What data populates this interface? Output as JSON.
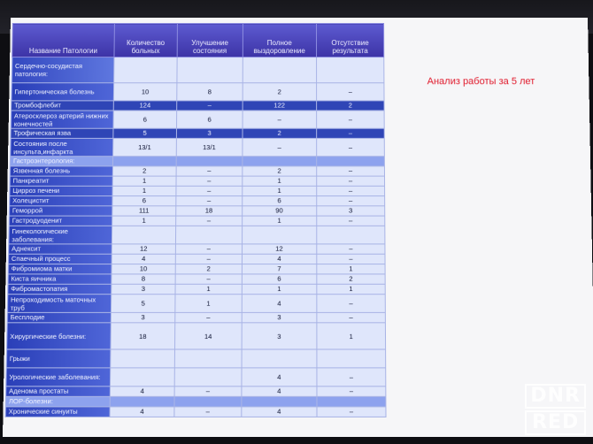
{
  "caption": "Анализ работы за 5 лет",
  "watermark": {
    "line1": "DNR",
    "line2": "RED"
  },
  "table": {
    "headers": [
      "Название Патологии",
      "Количество больных",
      "Улучшение состояния",
      "Полное выздоровление",
      "Отсутствие результата"
    ],
    "rows": [
      {
        "name": "Сердечно-сосудистая патология:",
        "cols": [
          "",
          "",
          "",
          ""
        ]
      },
      {
        "name": "Гипертоническая болезнь",
        "cols": [
          "10",
          "8",
          "2",
          "–"
        ]
      },
      {
        "name": "Тромбофлебит",
        "cols": [
          "124",
          "–",
          "122",
          "2"
        ]
      },
      {
        "name": "Атеросклероз артерий нижних конечностей",
        "cols": [
          "6",
          "6",
          "–",
          "–"
        ]
      },
      {
        "name": "Трофическая язва",
        "cols": [
          "5",
          "3",
          "2",
          "–"
        ]
      },
      {
        "name": "Состояния после инсульта,инфаркта",
        "cols": [
          "13/1",
          "13/1",
          "–",
          "–"
        ]
      },
      {
        "name": "Гастроэнтерология:",
        "cols": [
          "",
          "",
          "",
          ""
        ]
      },
      {
        "name": "Язвенная болезнь",
        "cols": [
          "2",
          "–",
          "2",
          "–"
        ]
      },
      {
        "name": "Панкреатит",
        "cols": [
          "1",
          "–",
          "1",
          "–"
        ]
      },
      {
        "name": "Цирроз печени",
        "cols": [
          "1",
          "–",
          "1",
          "–"
        ]
      },
      {
        "name": "Холецистит",
        "cols": [
          "6",
          "–",
          "6",
          "–"
        ]
      },
      {
        "name": "Геморрой",
        "cols": [
          "111",
          "18",
          "90",
          "3"
        ]
      },
      {
        "name": "Гастродуоденит",
        "cols": [
          "1",
          "–",
          "1",
          "–"
        ]
      },
      {
        "name": "Гинекологические заболевания:",
        "cols": [
          "",
          "",
          "",
          ""
        ]
      },
      {
        "name": "Аднексит",
        "cols": [
          "12",
          "–",
          "12",
          "–"
        ]
      },
      {
        "name": "Спаечный процесс",
        "cols": [
          "4",
          "–",
          "4",
          "–"
        ]
      },
      {
        "name": "Фибромиома матки",
        "cols": [
          "10",
          "2",
          "7",
          "1"
        ]
      },
      {
        "name": "Киста яичника",
        "cols": [
          "8",
          "–",
          "6",
          "2"
        ]
      },
      {
        "name": "Фибромастопатия",
        "cols": [
          "3",
          "1",
          "1",
          "1"
        ]
      },
      {
        "name": "Непроходимость маточных труб",
        "cols": [
          "5",
          "1",
          "4",
          "–"
        ]
      },
      {
        "name": "Бесплодие",
        "cols": [
          "3",
          "–",
          "3",
          "–"
        ]
      },
      {
        "name": "Хирургические болезни:",
        "cols": [
          "18",
          "14",
          "3",
          "1"
        ]
      },
      {
        "name": "Грыжи",
        "cols": [
          "",
          "",
          "",
          ""
        ]
      },
      {
        "name": "Урологические заболевания:",
        "cols": [
          "",
          "",
          "4",
          "–"
        ]
      },
      {
        "name": "Аденома простаты",
        "cols": [
          "4",
          "–",
          "4",
          "–"
        ]
      },
      {
        "name": "ЛОР-болезни:",
        "cols": [
          "",
          "",
          "",
          ""
        ]
      },
      {
        "name": "Хронические синуиты",
        "cols": [
          "4",
          "–",
          "4",
          "–"
        ]
      }
    ]
  }
}
